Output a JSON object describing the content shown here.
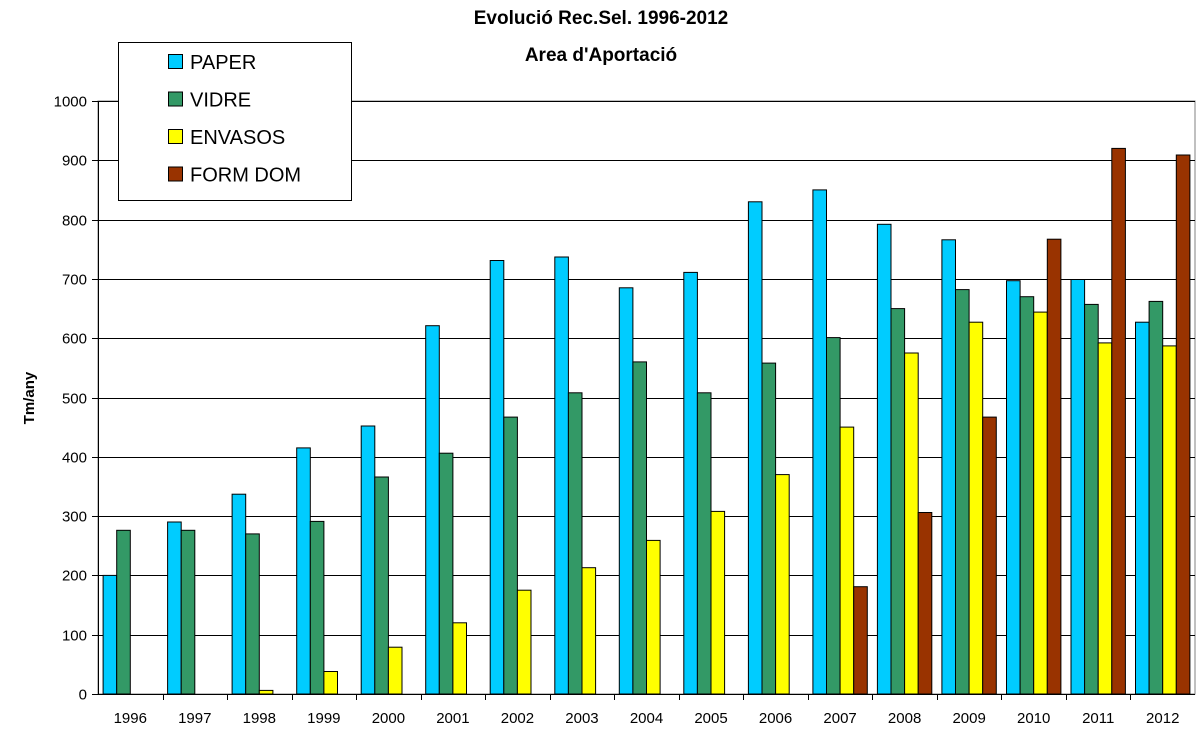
{
  "chart_data": {
    "type": "bar",
    "title": [
      "Evolució Rec.Sel. 1996-2012",
      "Area d'Aportació"
    ],
    "ylabel": "Tm/any",
    "xlabel": "",
    "ylim": [
      0,
      1000
    ],
    "ytick_step": 100,
    "grid": "horizontal",
    "legend_position": "top-left",
    "categories": [
      "1996",
      "1997",
      "1998",
      "1999",
      "2000",
      "2001",
      "2002",
      "2003",
      "2004",
      "2005",
      "2006",
      "2007",
      "2008",
      "2009",
      "2010",
      "2011",
      "2012"
    ],
    "series": [
      {
        "name": "PAPER",
        "color": "#00CCFF",
        "values": [
          200,
          290,
          337,
          415,
          452,
          621,
          731,
          737,
          685,
          711,
          830,
          850,
          792,
          766,
          697,
          699,
          627
        ]
      },
      {
        "name": "VIDRE",
        "color": "#339966",
        "values": [
          276,
          276,
          270,
          291,
          366,
          406,
          467,
          508,
          560,
          508,
          558,
          601,
          650,
          682,
          670,
          657,
          662
        ]
      },
      {
        "name": "ENVASOS",
        "color": "#FFFF00",
        "values": [
          null,
          null,
          6,
          38,
          79,
          120,
          175,
          213,
          259,
          308,
          370,
          450,
          575,
          627,
          644,
          592,
          587
        ]
      },
      {
        "name": "FORM DOM",
        "color": "#993300",
        "values": [
          null,
          null,
          null,
          null,
          null,
          null,
          null,
          null,
          null,
          null,
          null,
          181,
          306,
          467,
          767,
          920,
          909
        ]
      }
    ]
  }
}
